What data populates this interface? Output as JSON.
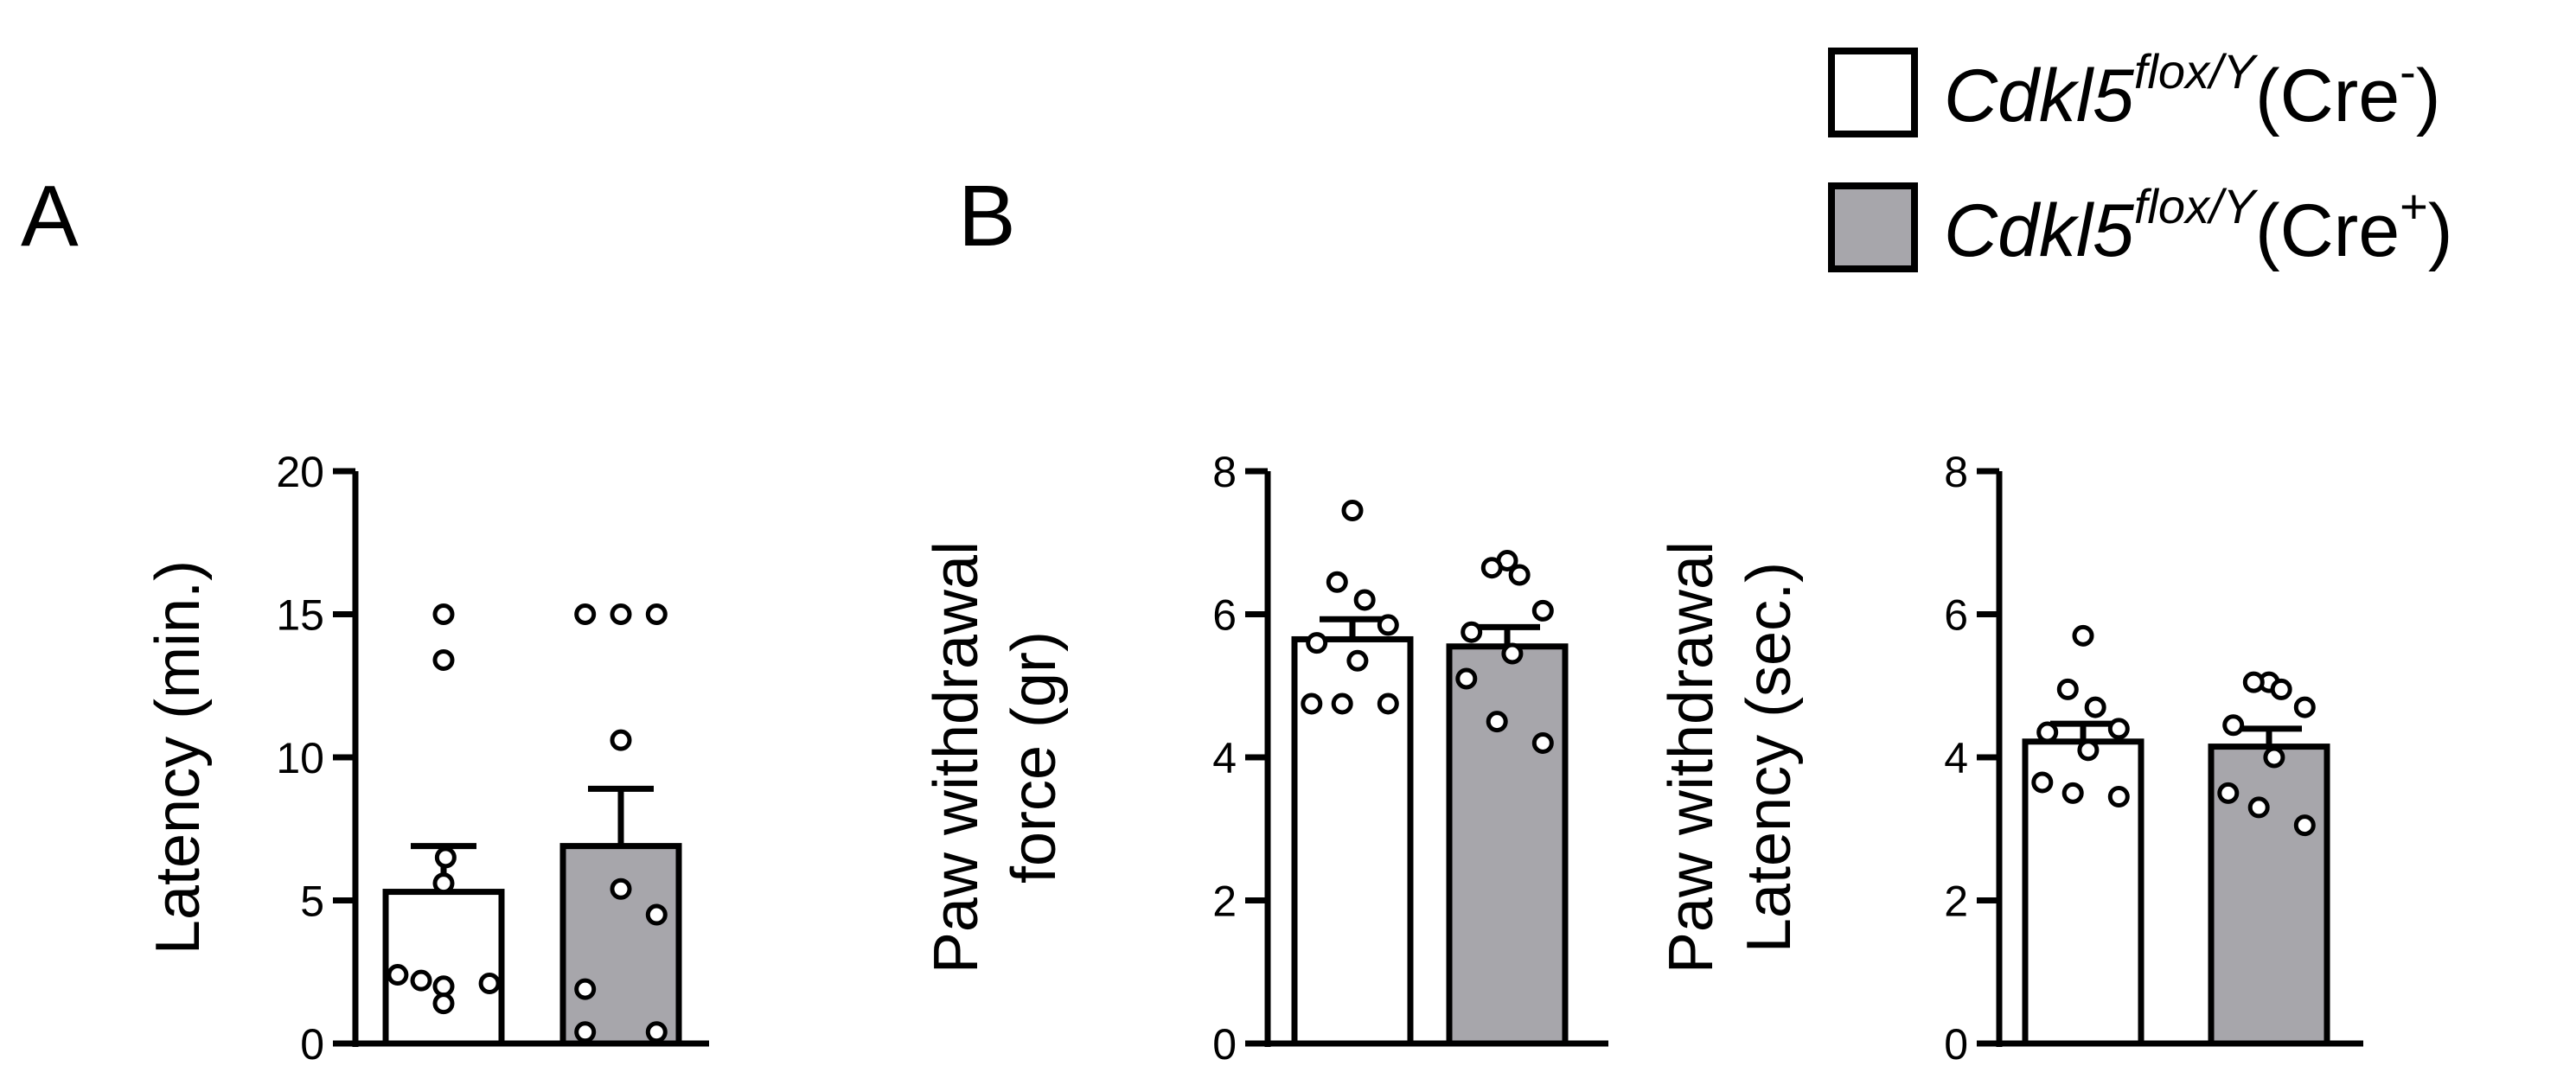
{
  "panels": [
    {
      "letter": "A"
    },
    {
      "letter": "B"
    }
  ],
  "legend": {
    "entries": [
      {
        "gene": "Cdkl5",
        "allele": "flox/Y",
        "cre_open": "(Cre",
        "cre_sign": "-",
        "cre_close": ")",
        "fill": "#ffffff"
      },
      {
        "gene": "Cdkl5",
        "allele": "flox/Y",
        "cre_open": "(Cre",
        "cre_sign": "+",
        "cre_close": ")",
        "fill": "#a7a6ab"
      }
    ]
  },
  "chart_data": [
    {
      "type": "bar",
      "panel": "A",
      "ylabel": [
        "Latency (min.)"
      ],
      "ylim": [
        0,
        20
      ],
      "yticks": [
        0,
        5,
        10,
        15,
        20
      ],
      "categories": [
        "Cre-",
        "Cre+"
      ],
      "values": [
        5.3,
        6.9
      ],
      "sem": [
        1.6,
        2.0
      ],
      "bar_colors": [
        "#ffffff",
        "#a7a6ab"
      ],
      "points": [
        [
          15.0,
          13.4,
          6.5,
          5.6,
          2.4,
          2.2,
          2.1,
          2.0,
          1.4
        ],
        [
          15.0,
          15.0,
          15.0,
          10.6,
          5.4,
          4.5,
          1.9,
          0.4,
          0.4
        ]
      ]
    },
    {
      "type": "bar",
      "panel": "B",
      "ylabel": [
        "Paw withdrawal",
        "force (gr)"
      ],
      "ylim": [
        0,
        8
      ],
      "yticks": [
        0,
        2,
        4,
        6,
        8
      ],
      "categories": [
        "Cre-",
        "Cre+"
      ],
      "values": [
        5.65,
        5.55
      ],
      "sem": [
        0.28,
        0.27
      ],
      "bar_colors": [
        "#ffffff",
        "#a7a6ab"
      ],
      "points": [
        [
          7.45,
          6.45,
          6.2,
          5.85,
          5.6,
          5.35,
          4.75,
          4.75,
          4.75
        ],
        [
          6.75,
          6.65,
          6.55,
          6.05,
          5.75,
          5.45,
          5.1,
          4.5,
          4.2
        ]
      ]
    },
    {
      "type": "bar",
      "panel": "B",
      "ylabel": [
        "Paw withdrawal",
        "Latency (sec.)"
      ],
      "ylim": [
        0,
        8
      ],
      "yticks": [
        0,
        2,
        4,
        6,
        8
      ],
      "categories": [
        "Cre-",
        "Cre+"
      ],
      "values": [
        4.22,
        4.15
      ],
      "sem": [
        0.25,
        0.25
      ],
      "bar_colors": [
        "#ffffff",
        "#a7a6ab"
      ],
      "points": [
        [
          5.7,
          4.95,
          4.7,
          4.4,
          4.35,
          4.1,
          3.65,
          3.5,
          3.45
        ],
        [
          5.05,
          5.05,
          4.95,
          4.7,
          4.45,
          4.0,
          3.5,
          3.3,
          3.05
        ]
      ]
    }
  ]
}
